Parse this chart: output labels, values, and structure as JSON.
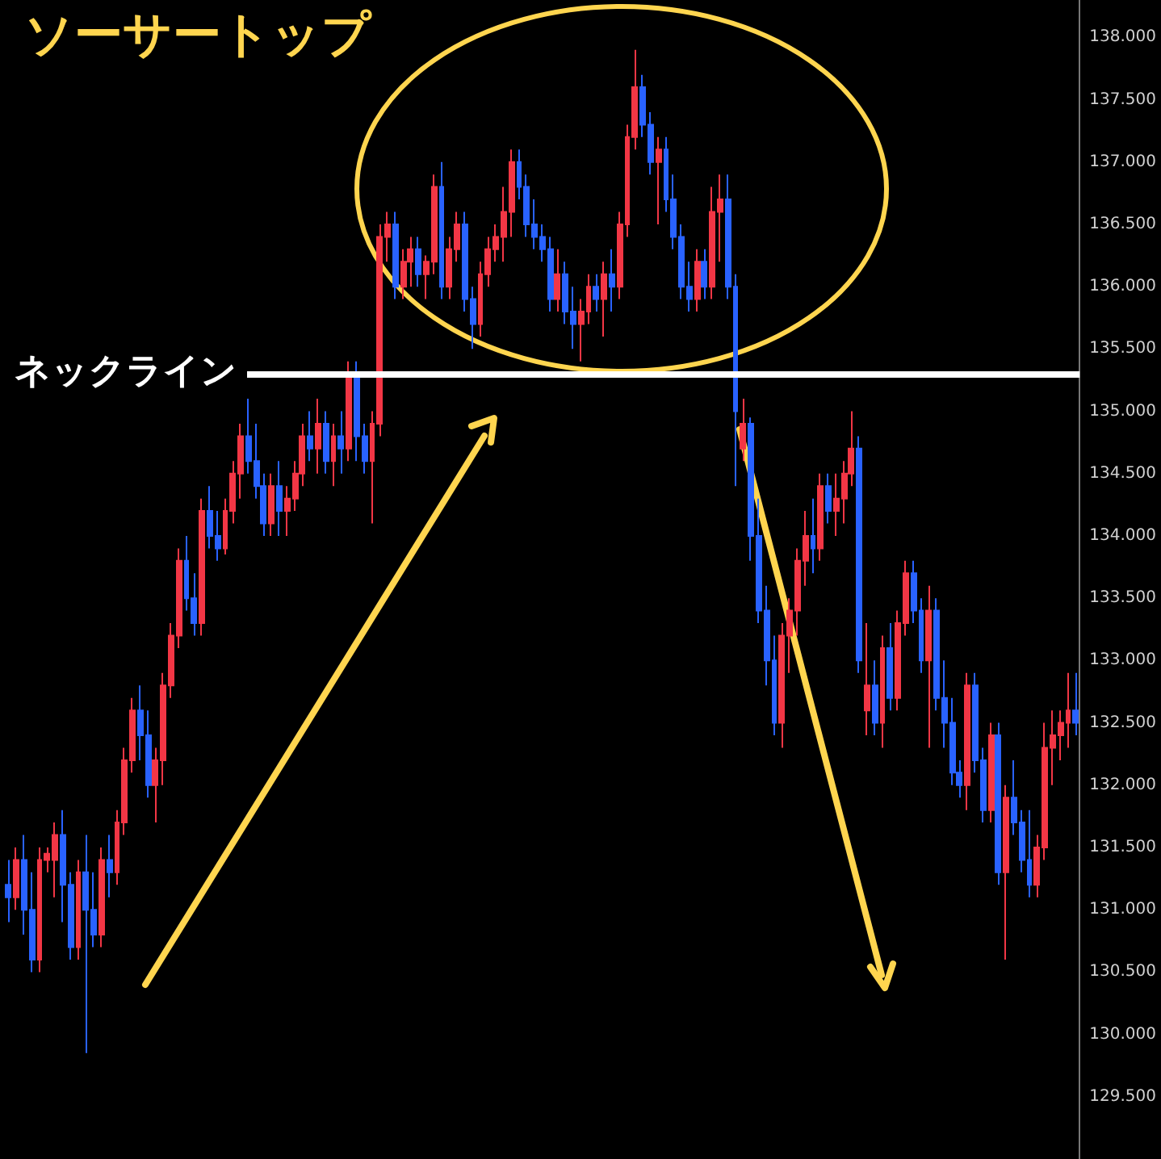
{
  "chart_data": {
    "type": "candlestick",
    "title": "ソーサートップ",
    "categories": [
      null,
      null,
      null,
      null,
      null,
      null,
      null,
      null,
      null,
      null,
      null,
      null,
      null,
      null,
      null,
      null,
      null,
      null,
      null,
      null,
      null,
      null,
      null,
      null,
      null,
      null,
      null,
      null,
      null,
      null,
      null,
      null,
      null,
      null,
      null,
      null,
      null,
      null,
      null,
      null,
      null,
      null,
      null,
      null,
      null,
      null,
      null,
      null,
      null,
      null,
      null,
      null,
      null,
      null,
      null,
      null,
      null,
      null,
      null,
      null,
      null,
      null,
      null,
      null,
      null,
      null,
      null,
      null,
      null,
      null,
      null,
      null,
      null,
      null,
      null,
      null,
      null,
      null,
      null,
      null,
      null,
      null,
      null,
      null,
      null,
      null,
      null,
      null,
      null,
      null,
      null,
      null,
      null,
      null,
      null,
      null,
      null,
      null,
      null,
      null,
      null,
      null,
      null,
      null,
      null,
      null,
      null,
      null,
      null,
      null,
      null,
      null,
      null,
      null,
      null,
      null,
      null,
      null,
      null,
      null,
      null,
      null,
      null,
      null,
      null,
      null,
      null,
      null,
      null,
      null,
      null,
      null,
      null,
      null,
      null,
      null,
      null,
      null,
      null
    ],
    "ohlc": [
      [
        131.2,
        131.4,
        130.9,
        131.1
      ],
      [
        131.1,
        131.5,
        131.0,
        131.4
      ],
      [
        131.4,
        131.6,
        130.8,
        131.0
      ],
      [
        131.0,
        131.3,
        130.5,
        130.6
      ],
      [
        130.6,
        131.5,
        130.5,
        131.4
      ],
      [
        131.4,
        131.5,
        131.3,
        131.45
      ],
      [
        131.4,
        131.7,
        131.1,
        131.6
      ],
      [
        131.6,
        131.8,
        130.9,
        131.2
      ],
      [
        131.2,
        131.3,
        130.6,
        130.7
      ],
      [
        130.7,
        131.4,
        130.6,
        131.3
      ],
      [
        131.3,
        131.6,
        129.85,
        131.0
      ],
      [
        131.0,
        131.3,
        130.7,
        130.8
      ],
      [
        130.8,
        131.5,
        130.7,
        131.4
      ],
      [
        131.4,
        131.6,
        131.1,
        131.3
      ],
      [
        131.3,
        131.8,
        131.2,
        131.7
      ],
      [
        131.7,
        132.3,
        131.6,
        132.2
      ],
      [
        132.2,
        132.7,
        132.1,
        132.6
      ],
      [
        132.6,
        132.8,
        132.2,
        132.4
      ],
      [
        132.4,
        132.6,
        131.9,
        132.0
      ],
      [
        132.0,
        132.3,
        131.7,
        132.2
      ],
      [
        132.2,
        132.9,
        132.0,
        132.8
      ],
      [
        132.8,
        133.3,
        132.7,
        133.2
      ],
      [
        133.2,
        133.9,
        133.1,
        133.8
      ],
      [
        133.8,
        134.0,
        133.4,
        133.5
      ],
      [
        133.5,
        133.7,
        133.2,
        133.3
      ],
      [
        133.3,
        134.3,
        133.2,
        134.2
      ],
      [
        134.2,
        134.4,
        133.9,
        134.0
      ],
      [
        134.0,
        134.2,
        133.8,
        133.9
      ],
      [
        133.9,
        134.3,
        133.85,
        134.2
      ],
      [
        134.2,
        134.6,
        134.1,
        134.5
      ],
      [
        134.5,
        134.9,
        134.3,
        134.8
      ],
      [
        134.8,
        135.1,
        134.5,
        134.6
      ],
      [
        134.6,
        134.9,
        134.3,
        134.4
      ],
      [
        134.4,
        134.5,
        134.0,
        134.1
      ],
      [
        134.1,
        134.5,
        134.0,
        134.4
      ],
      [
        134.4,
        134.6,
        134.0,
        134.2
      ],
      [
        134.2,
        134.4,
        134.0,
        134.3
      ],
      [
        134.3,
        134.6,
        134.2,
        134.5
      ],
      [
        134.5,
        134.9,
        134.4,
        134.8
      ],
      [
        134.8,
        135.0,
        134.6,
        134.7
      ],
      [
        134.7,
        135.1,
        134.5,
        134.9
      ],
      [
        134.9,
        135.0,
        134.5,
        134.6
      ],
      [
        134.6,
        134.9,
        134.4,
        134.8
      ],
      [
        134.8,
        135.0,
        134.5,
        134.7
      ],
      [
        134.7,
        135.4,
        134.6,
        135.3
      ],
      [
        135.3,
        135.4,
        134.6,
        134.8
      ],
      [
        134.8,
        134.9,
        134.5,
        134.6
      ],
      [
        134.6,
        135.0,
        134.1,
        134.9
      ],
      [
        134.9,
        136.5,
        134.8,
        136.4
      ],
      [
        136.4,
        136.6,
        136.2,
        136.5
      ],
      [
        136.5,
        136.6,
        135.9,
        136.0
      ],
      [
        136.0,
        136.3,
        135.9,
        136.2
      ],
      [
        136.2,
        136.4,
        136.0,
        136.3
      ],
      [
        136.3,
        136.4,
        136.0,
        136.1
      ],
      [
        136.1,
        136.25,
        135.9,
        136.2
      ],
      [
        136.2,
        136.9,
        136.1,
        136.8
      ],
      [
        136.8,
        137.0,
        135.9,
        136.0
      ],
      [
        136.0,
        136.4,
        135.9,
        136.3
      ],
      [
        136.3,
        136.6,
        136.2,
        136.5
      ],
      [
        136.5,
        136.6,
        135.8,
        135.9
      ],
      [
        135.9,
        136.0,
        135.5,
        135.7
      ],
      [
        135.7,
        136.2,
        135.6,
        136.1
      ],
      [
        136.1,
        136.4,
        136.0,
        136.3
      ],
      [
        136.3,
        136.5,
        136.2,
        136.4
      ],
      [
        136.4,
        136.8,
        136.2,
        136.6
      ],
      [
        136.6,
        137.1,
        136.4,
        137.0
      ],
      [
        137.0,
        137.1,
        136.7,
        136.8
      ],
      [
        136.8,
        136.9,
        136.4,
        136.5
      ],
      [
        136.5,
        136.7,
        136.3,
        136.4
      ],
      [
        136.4,
        136.5,
        136.2,
        136.3
      ],
      [
        136.3,
        136.4,
        135.8,
        135.9
      ],
      [
        135.9,
        136.3,
        135.8,
        136.1
      ],
      [
        136.1,
        136.2,
        135.7,
        135.8
      ],
      [
        135.8,
        136.0,
        135.5,
        135.7
      ],
      [
        135.7,
        135.9,
        135.4,
        135.8
      ],
      [
        135.8,
        136.1,
        135.7,
        136.0
      ],
      [
        136.0,
        136.1,
        135.8,
        135.9
      ],
      [
        135.9,
        136.2,
        135.6,
        136.1
      ],
      [
        136.1,
        136.3,
        135.8,
        136.0
      ],
      [
        136.0,
        136.6,
        135.9,
        136.5
      ],
      [
        136.5,
        137.3,
        136.4,
        137.2
      ],
      [
        137.2,
        137.9,
        137.1,
        137.6
      ],
      [
        137.6,
        137.7,
        137.2,
        137.3
      ],
      [
        137.3,
        137.4,
        136.9,
        137.0
      ],
      [
        137.0,
        137.2,
        136.5,
        137.1
      ],
      [
        137.1,
        137.2,
        136.6,
        136.7
      ],
      [
        136.7,
        136.9,
        136.3,
        136.4
      ],
      [
        136.4,
        136.5,
        135.9,
        136.0
      ],
      [
        136.0,
        136.2,
        135.8,
        135.9
      ],
      [
        135.9,
        136.3,
        135.8,
        136.2
      ],
      [
        136.2,
        136.3,
        135.9,
        136.0
      ],
      [
        136.0,
        136.8,
        135.9,
        136.6
      ],
      [
        136.6,
        136.9,
        136.2,
        136.7
      ],
      [
        136.7,
        136.9,
        135.9,
        136.0
      ],
      [
        136.0,
        136.1,
        134.4,
        135.0
      ],
      [
        134.7,
        135.1,
        134.6,
        134.9
      ],
      [
        134.9,
        134.95,
        133.8,
        134.0
      ],
      [
        134.0,
        134.3,
        133.3,
        133.4
      ],
      [
        133.4,
        133.6,
        132.8,
        133.0
      ],
      [
        133.0,
        133.2,
        132.4,
        132.5
      ],
      [
        132.5,
        133.3,
        132.3,
        133.2
      ],
      [
        133.2,
        133.5,
        132.9,
        133.4
      ],
      [
        133.4,
        133.9,
        133.2,
        133.8
      ],
      [
        133.8,
        134.2,
        133.6,
        134.0
      ],
      [
        134.0,
        134.3,
        133.7,
        133.9
      ],
      [
        133.9,
        134.5,
        133.8,
        134.4
      ],
      [
        134.4,
        134.5,
        134.1,
        134.2
      ],
      [
        134.2,
        134.5,
        134.0,
        134.3
      ],
      [
        134.3,
        134.6,
        134.1,
        134.5
      ],
      [
        134.5,
        135.0,
        134.4,
        134.7
      ],
      [
        134.7,
        134.8,
        132.9,
        133.0
      ],
      [
        132.6,
        133.3,
        132.4,
        132.8
      ],
      [
        132.8,
        133.0,
        132.4,
        132.5
      ],
      [
        132.5,
        133.2,
        132.3,
        133.1
      ],
      [
        133.1,
        133.3,
        132.6,
        132.7
      ],
      [
        132.7,
        133.4,
        132.6,
        133.3
      ],
      [
        133.3,
        133.8,
        133.2,
        133.7
      ],
      [
        133.7,
        133.8,
        133.3,
        133.4
      ],
      [
        133.4,
        133.5,
        132.9,
        133.0
      ],
      [
        133.0,
        133.6,
        132.3,
        133.4
      ],
      [
        133.4,
        133.5,
        132.6,
        132.7
      ],
      [
        132.7,
        133.0,
        132.3,
        132.5
      ],
      [
        132.5,
        132.7,
        132.0,
        132.1
      ],
      [
        132.1,
        132.2,
        131.9,
        132.0
      ],
      [
        132.0,
        132.9,
        131.8,
        132.8
      ],
      [
        132.8,
        132.9,
        132.1,
        132.2
      ],
      [
        132.2,
        132.3,
        131.7,
        131.8
      ],
      [
        131.8,
        132.5,
        131.7,
        132.4
      ],
      [
        132.4,
        132.5,
        131.2,
        131.3
      ],
      [
        131.3,
        132.0,
        130.6,
        131.9
      ],
      [
        131.9,
        132.2,
        131.6,
        131.7
      ],
      [
        131.7,
        131.8,
        131.3,
        131.4
      ],
      [
        131.4,
        131.8,
        131.1,
        131.2
      ],
      [
        131.2,
        131.6,
        131.1,
        131.5
      ],
      [
        131.5,
        132.5,
        131.4,
        132.3
      ],
      [
        132.3,
        132.6,
        132.0,
        132.4
      ],
      [
        132.4,
        132.6,
        132.2,
        132.5
      ],
      [
        132.5,
        132.9,
        132.3,
        132.6
      ],
      [
        132.6,
        132.9,
        132.4,
        132.5
      ]
    ],
    "colors": [
      "#2962ff",
      "#f23645",
      "#2962ff",
      "#2962ff",
      "#f23645",
      "#f23645",
      "#f23645",
      "#2962ff",
      "#2962ff",
      "#f23645",
      "#2962ff",
      "#2962ff",
      "#f23645",
      "#2962ff",
      "#f23645",
      "#f23645",
      "#f23645",
      "#2962ff",
      "#2962ff",
      "#f23645",
      "#f23645",
      "#f23645",
      "#f23645",
      "#2962ff",
      "#2962ff",
      "#f23645",
      "#2962ff",
      "#2962ff",
      "#f23645",
      "#f23645",
      "#f23645",
      "#2962ff",
      "#2962ff",
      "#2962ff",
      "#f23645",
      "#2962ff",
      "#f23645",
      "#f23645",
      "#f23645",
      "#2962ff",
      "#f23645",
      "#2962ff",
      "#f23645",
      "#2962ff",
      "#f23645",
      "#2962ff",
      "#2962ff",
      "#f23645",
      "#f23645",
      "#f23645",
      "#2962ff",
      "#f23645",
      "#f23645",
      "#2962ff",
      "#f23645",
      "#f23645",
      "#2962ff",
      "#f23645",
      "#f23645",
      "#2962ff",
      "#2962ff",
      "#f23645",
      "#f23645",
      "#f23645",
      "#f23645",
      "#f23645",
      "#2962ff",
      "#2962ff",
      "#2962ff",
      "#2962ff",
      "#2962ff",
      "#f23645",
      "#2962ff",
      "#2962ff",
      "#f23645",
      "#f23645",
      "#2962ff",
      "#f23645",
      "#2962ff",
      "#f23645",
      "#f23645",
      "#f23645",
      "#2962ff",
      "#2962ff",
      "#f23645",
      "#2962ff",
      "#2962ff",
      "#2962ff",
      "#2962ff",
      "#f23645",
      "#2962ff",
      "#f23645",
      "#f23645",
      "#2962ff",
      "#2962ff",
      "#f23645",
      "#2962ff",
      "#2962ff",
      "#2962ff",
      "#2962ff",
      "#f23645",
      "#f23645",
      "#f23645",
      "#f23645",
      "#2962ff",
      "#f23645",
      "#2962ff",
      "#f23645",
      "#f23645",
      "#f23645",
      "#2962ff",
      "#f23645",
      "#2962ff",
      "#f23645",
      "#2962ff",
      "#f23645",
      "#f23645",
      "#2962ff",
      "#2962ff",
      "#f23645",
      "#2962ff",
      "#2962ff",
      "#2962ff",
      "#2962ff",
      "#f23645",
      "#2962ff",
      "#2962ff",
      "#f23645",
      "#2962ff",
      "#f23645",
      "#2962ff",
      "#2962ff",
      "#2962ff",
      "#f23645",
      "#f23645",
      "#f23645",
      "#f23645",
      "#f23645",
      "#2962ff"
    ],
    "ylim": [
      129.0,
      138.3
    ],
    "yticks": [
      {
        "value": 129.5,
        "label": "129.500"
      },
      {
        "value": 130.0,
        "label": "130.000"
      },
      {
        "value": 130.5,
        "label": "130.500"
      },
      {
        "value": 131.0,
        "label": "131.000"
      },
      {
        "value": 131.5,
        "label": "131.500"
      },
      {
        "value": 132.0,
        "label": "132.000"
      },
      {
        "value": 132.5,
        "label": "132.500"
      },
      {
        "value": 133.0,
        "label": "133.000"
      },
      {
        "value": 133.5,
        "label": "133.500"
      },
      {
        "value": 134.0,
        "label": "134.000"
      },
      {
        "value": 134.5,
        "label": "134.500"
      },
      {
        "value": 135.0,
        "label": "135.000"
      },
      {
        "value": 135.5,
        "label": "135.500"
      },
      {
        "value": 136.0,
        "label": "136.000"
      },
      {
        "value": 136.5,
        "label": "136.500"
      },
      {
        "value": 137.0,
        "label": "137.000"
      },
      {
        "value": 137.5,
        "label": "137.500"
      },
      {
        "value": 138.0,
        "label": "138.000"
      }
    ],
    "ref_lines": [
      {
        "axis": "y",
        "value": 135.3,
        "label": "ネックライン",
        "color": "#ffffff"
      }
    ],
    "tick_labels": "y",
    "grid": false
  }
}
